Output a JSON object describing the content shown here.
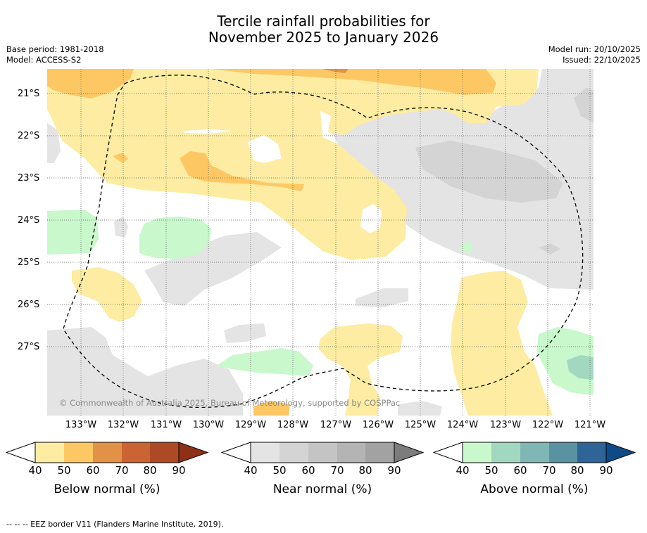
{
  "title": {
    "line1": "Tercile rainfall probabilities for",
    "line2": "November 2025 to January 2026"
  },
  "meta": {
    "base_period": "Base period: 1981-2018",
    "model": "Model: ACCESS-S2",
    "model_run": "Model run: 20/10/2025",
    "issued": "Issued: 22/10/2025"
  },
  "map": {
    "lat_labels": [
      "21°S",
      "22°S",
      "23°S",
      "24°S",
      "25°S",
      "26°S",
      "27°S"
    ],
    "lon_labels": [
      "133°W",
      "132°W",
      "131°W",
      "130°W",
      "129°W",
      "128°W",
      "127°W",
      "126°W",
      "125°W",
      "124°W",
      "123°W",
      "122°W",
      "121°W"
    ],
    "copyright": "© Commonwealth of Australia 2025, Bureau of Meteorology, supported by COSPPac",
    "colors": {
      "below_40": "#fdeca2",
      "below_50": "#fdc864",
      "below_60": "#e19246",
      "near_40": "#e4e4e4",
      "near_50": "#d4d4d4",
      "above_40": "#c8f8cc",
      "above_50": "#a2d8c0"
    }
  },
  "colorbars": [
    {
      "name": "below",
      "title": "Below normal (%)",
      "ticks": [
        "40",
        "50",
        "60",
        "70",
        "80",
        "90"
      ],
      "colors": [
        "#fdeca2",
        "#fdc864",
        "#e19246",
        "#ca6432",
        "#ad4a26",
        "#8e3017"
      ]
    },
    {
      "name": "near",
      "title": "Near normal (%)",
      "ticks": [
        "40",
        "50",
        "60",
        "70",
        "80",
        "90"
      ],
      "colors": [
        "#e4e4e4",
        "#d4d4d4",
        "#c4c4c4",
        "#b4b4b4",
        "#a2a2a2",
        "#7c7c7c"
      ]
    },
    {
      "name": "above",
      "title": "Above normal (%)",
      "ticks": [
        "40",
        "50",
        "60",
        "70",
        "80",
        "90"
      ],
      "colors": [
        "#c8f8cc",
        "#a2d8c0",
        "#80b6b4",
        "#5a92a2",
        "#2e6496",
        "#0e4a86"
      ]
    }
  ],
  "footnote": "--  --  -- EEZ border V11 (Flanders Marine Institute, 2019)."
}
